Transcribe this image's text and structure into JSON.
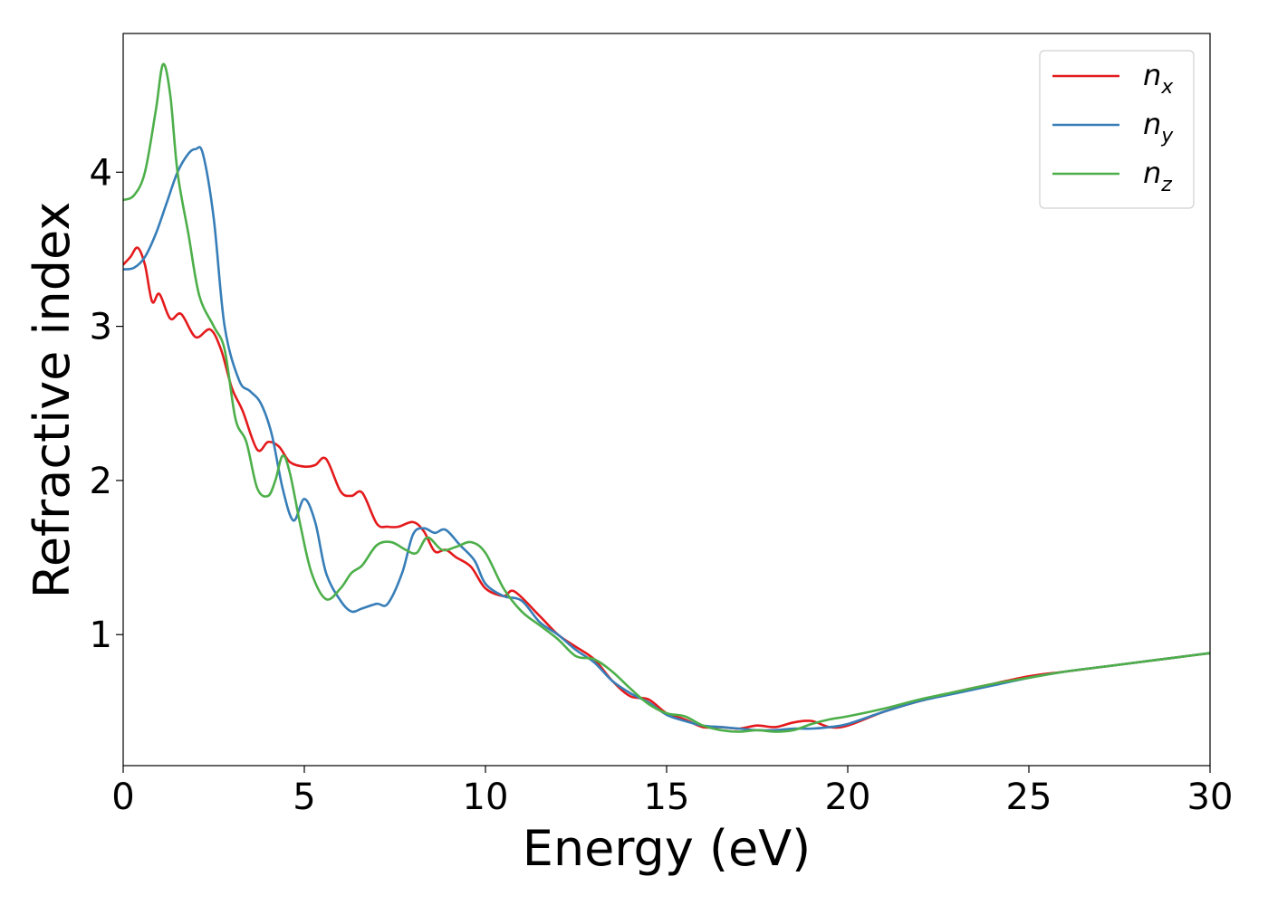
{
  "chart_data": {
    "type": "line",
    "xlabel": "Energy (eV)",
    "ylabel": "Refractive index",
    "xlim": [
      0,
      30
    ],
    "ylim": [
      0.15,
      4.9
    ],
    "xticks": [
      0,
      5,
      10,
      15,
      20,
      25,
      30
    ],
    "yticks": [
      1,
      2,
      3,
      4
    ],
    "grid": false,
    "legend_position": "top-right",
    "series": [
      {
        "name": "n_x",
        "name_base": "n",
        "name_sub": "x",
        "color": "#e41a1c",
        "points": [
          [
            0,
            3.4
          ],
          [
            0.2,
            3.45
          ],
          [
            0.4,
            3.51
          ],
          [
            0.6,
            3.4
          ],
          [
            0.8,
            3.16
          ],
          [
            1.0,
            3.21
          ],
          [
            1.3,
            3.05
          ],
          [
            1.6,
            3.08
          ],
          [
            2.0,
            2.93
          ],
          [
            2.4,
            2.98
          ],
          [
            2.7,
            2.85
          ],
          [
            3.0,
            2.6
          ],
          [
            3.3,
            2.45
          ],
          [
            3.7,
            2.2
          ],
          [
            4.0,
            2.25
          ],
          [
            4.3,
            2.22
          ],
          [
            4.6,
            2.12
          ],
          [
            5.0,
            2.09
          ],
          [
            5.3,
            2.1
          ],
          [
            5.6,
            2.14
          ],
          [
            6.0,
            1.93
          ],
          [
            6.3,
            1.9
          ],
          [
            6.6,
            1.92
          ],
          [
            7.0,
            1.72
          ],
          [
            7.3,
            1.7
          ],
          [
            7.6,
            1.7
          ],
          [
            8.0,
            1.73
          ],
          [
            8.3,
            1.67
          ],
          [
            8.6,
            1.54
          ],
          [
            8.9,
            1.55
          ],
          [
            9.2,
            1.5
          ],
          [
            9.6,
            1.44
          ],
          [
            10.0,
            1.3
          ],
          [
            10.5,
            1.25
          ],
          [
            10.8,
            1.28
          ],
          [
            11.5,
            1.12
          ],
          [
            12.0,
            1.0
          ],
          [
            12.5,
            0.92
          ],
          [
            13.0,
            0.84
          ],
          [
            13.5,
            0.7
          ],
          [
            14.0,
            0.6
          ],
          [
            14.5,
            0.58
          ],
          [
            15.0,
            0.49
          ],
          [
            15.5,
            0.45
          ],
          [
            16.0,
            0.4
          ],
          [
            16.5,
            0.4
          ],
          [
            17.0,
            0.39
          ],
          [
            17.5,
            0.41
          ],
          [
            18.0,
            0.4
          ],
          [
            18.5,
            0.43
          ],
          [
            19.0,
            0.44
          ],
          [
            19.5,
            0.4
          ],
          [
            20.0,
            0.41
          ],
          [
            21.0,
            0.5
          ],
          [
            22.0,
            0.57
          ],
          [
            23.0,
            0.63
          ],
          [
            24.0,
            0.68
          ],
          [
            25.0,
            0.73
          ],
          [
            26.0,
            0.76
          ],
          [
            27.0,
            0.79
          ],
          [
            28.0,
            0.82
          ],
          [
            29.0,
            0.85
          ],
          [
            30.0,
            0.88
          ]
        ]
      },
      {
        "name": "n_y",
        "name_base": "n",
        "name_sub": "y",
        "color": "#377eb8",
        "points": [
          [
            0,
            3.37
          ],
          [
            0.3,
            3.38
          ],
          [
            0.6,
            3.45
          ],
          [
            0.9,
            3.6
          ],
          [
            1.2,
            3.8
          ],
          [
            1.5,
            4.0
          ],
          [
            1.8,
            4.12
          ],
          [
            2.0,
            4.15
          ],
          [
            2.2,
            4.12
          ],
          [
            2.5,
            3.7
          ],
          [
            2.8,
            3.0
          ],
          [
            3.2,
            2.65
          ],
          [
            3.5,
            2.58
          ],
          [
            3.8,
            2.5
          ],
          [
            4.1,
            2.3
          ],
          [
            4.4,
            1.95
          ],
          [
            4.7,
            1.74
          ],
          [
            5.0,
            1.88
          ],
          [
            5.3,
            1.73
          ],
          [
            5.6,
            1.4
          ],
          [
            6.0,
            1.22
          ],
          [
            6.3,
            1.15
          ],
          [
            6.6,
            1.17
          ],
          [
            7.0,
            1.2
          ],
          [
            7.3,
            1.2
          ],
          [
            7.7,
            1.4
          ],
          [
            8.0,
            1.65
          ],
          [
            8.3,
            1.69
          ],
          [
            8.6,
            1.66
          ],
          [
            8.9,
            1.68
          ],
          [
            9.3,
            1.58
          ],
          [
            9.7,
            1.48
          ],
          [
            10.0,
            1.33
          ],
          [
            10.5,
            1.25
          ],
          [
            11.0,
            1.22
          ],
          [
            11.5,
            1.08
          ],
          [
            12.0,
            1.0
          ],
          [
            12.5,
            0.9
          ],
          [
            13.0,
            0.82
          ],
          [
            13.5,
            0.7
          ],
          [
            14.0,
            0.62
          ],
          [
            14.5,
            0.56
          ],
          [
            15.0,
            0.48
          ],
          [
            15.5,
            0.44
          ],
          [
            16.0,
            0.41
          ],
          [
            16.5,
            0.4
          ],
          [
            17.0,
            0.39
          ],
          [
            17.5,
            0.38
          ],
          [
            18.0,
            0.38
          ],
          [
            18.5,
            0.39
          ],
          [
            19.0,
            0.39
          ],
          [
            19.5,
            0.4
          ],
          [
            20.0,
            0.42
          ],
          [
            21.0,
            0.5
          ],
          [
            22.0,
            0.57
          ],
          [
            23.0,
            0.62
          ],
          [
            24.0,
            0.67
          ],
          [
            25.0,
            0.72
          ],
          [
            26.0,
            0.76
          ],
          [
            27.0,
            0.79
          ],
          [
            28.0,
            0.82
          ],
          [
            29.0,
            0.85
          ],
          [
            30.0,
            0.88
          ]
        ]
      },
      {
        "name": "n_z",
        "name_base": "n",
        "name_sub": "z",
        "color": "#4daf4a",
        "points": [
          [
            0,
            3.82
          ],
          [
            0.3,
            3.85
          ],
          [
            0.6,
            4.0
          ],
          [
            0.9,
            4.4
          ],
          [
            1.1,
            4.7
          ],
          [
            1.3,
            4.5
          ],
          [
            1.5,
            4.0
          ],
          [
            1.8,
            3.6
          ],
          [
            2.1,
            3.2
          ],
          [
            2.5,
            3.0
          ],
          [
            2.8,
            2.85
          ],
          [
            3.1,
            2.4
          ],
          [
            3.4,
            2.25
          ],
          [
            3.7,
            1.95
          ],
          [
            4.0,
            1.9
          ],
          [
            4.2,
            2.0
          ],
          [
            4.4,
            2.16
          ],
          [
            4.6,
            2.05
          ],
          [
            4.9,
            1.7
          ],
          [
            5.2,
            1.4
          ],
          [
            5.6,
            1.23
          ],
          [
            6.0,
            1.3
          ],
          [
            6.3,
            1.4
          ],
          [
            6.6,
            1.45
          ],
          [
            7.0,
            1.58
          ],
          [
            7.4,
            1.6
          ],
          [
            7.8,
            1.55
          ],
          [
            8.1,
            1.53
          ],
          [
            8.4,
            1.63
          ],
          [
            8.8,
            1.55
          ],
          [
            9.2,
            1.57
          ],
          [
            9.6,
            1.6
          ],
          [
            10.0,
            1.53
          ],
          [
            10.5,
            1.3
          ],
          [
            11.0,
            1.15
          ],
          [
            11.5,
            1.06
          ],
          [
            12.0,
            0.97
          ],
          [
            12.5,
            0.86
          ],
          [
            13.0,
            0.84
          ],
          [
            13.5,
            0.76
          ],
          [
            14.0,
            0.65
          ],
          [
            14.5,
            0.55
          ],
          [
            15.0,
            0.49
          ],
          [
            15.5,
            0.47
          ],
          [
            16.0,
            0.41
          ],
          [
            16.5,
            0.38
          ],
          [
            17.0,
            0.37
          ],
          [
            17.5,
            0.38
          ],
          [
            18.0,
            0.37
          ],
          [
            18.5,
            0.38
          ],
          [
            19.0,
            0.42
          ],
          [
            19.5,
            0.45
          ],
          [
            20.0,
            0.47
          ],
          [
            21.0,
            0.52
          ],
          [
            22.0,
            0.58
          ],
          [
            23.0,
            0.63
          ],
          [
            24.0,
            0.68
          ],
          [
            25.0,
            0.72
          ],
          [
            26.0,
            0.76
          ],
          [
            27.0,
            0.79
          ],
          [
            28.0,
            0.82
          ],
          [
            29.0,
            0.85
          ],
          [
            30.0,
            0.88
          ]
        ]
      }
    ]
  }
}
